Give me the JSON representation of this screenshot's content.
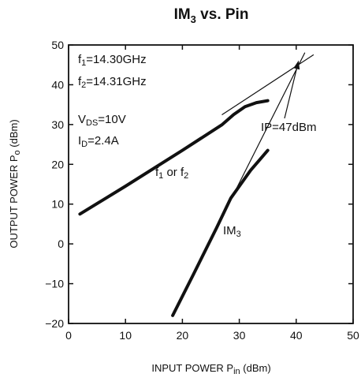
{
  "chart_data": {
    "type": "line",
    "title": {
      "main": "IM",
      "sub": "3",
      "rest": " vs. Pin"
    },
    "xlabel": {
      "main": "INPUT POWER  P",
      "sub": "in",
      "rest": " (dBm)"
    },
    "ylabel": {
      "main": "OUTPUT POWER  P",
      "sub": "o",
      "rest": " (dBm)"
    },
    "xlim": [
      0,
      50
    ],
    "ylim": [
      -20,
      50
    ],
    "xticks": [
      "0",
      "10",
      "20",
      "30",
      "40",
      "50"
    ],
    "yticks": [
      "−20",
      "−10",
      "0",
      "10",
      "20",
      "30",
      "40",
      "50"
    ],
    "grid": false,
    "series": [
      {
        "name": "f1 or f2",
        "style": "measured",
        "x": [
          2,
          10,
          20,
          27,
          29,
          31,
          33,
          35
        ],
        "y": [
          7.5,
          14.5,
          23.5,
          30,
          32.5,
          34.5,
          35.5,
          36
        ]
      },
      {
        "name": "IM3",
        "style": "measured",
        "x": [
          18.3,
          22,
          26,
          28.5,
          30.5,
          32,
          33.5,
          35
        ],
        "y": [
          -18,
          -7.5,
          4,
          11.5,
          15.5,
          18.5,
          21,
          23.5
        ]
      },
      {
        "name": "f1 or f2 extrapolation",
        "style": "extrapolation",
        "x": [
          27,
          43
        ],
        "y": [
          32.5,
          47.5
        ]
      },
      {
        "name": "IM3 extrapolation",
        "style": "extrapolation",
        "x": [
          29,
          41.5
        ],
        "y": [
          12.5,
          48
        ]
      }
    ],
    "annotations": {
      "f1": {
        "main": "f",
        "sub": "1",
        "rest": "=14.30GHz"
      },
      "f2": {
        "main": "f",
        "sub": "2",
        "rest": "=14.31GHz"
      },
      "vds": {
        "main": "V",
        "sub": "DS",
        "rest": "=10V"
      },
      "id": {
        "main": "I",
        "sub": "D",
        "rest": "=2.4A"
      },
      "fundamental": {
        "p1": "f",
        "s1": "1",
        "p2": " or  f",
        "s2": "2"
      },
      "im3": {
        "main": "IM",
        "sub": "3"
      },
      "ip": "IP=47dBm"
    },
    "ip_point": {
      "x": 40.5,
      "y": 46.5
    }
  }
}
